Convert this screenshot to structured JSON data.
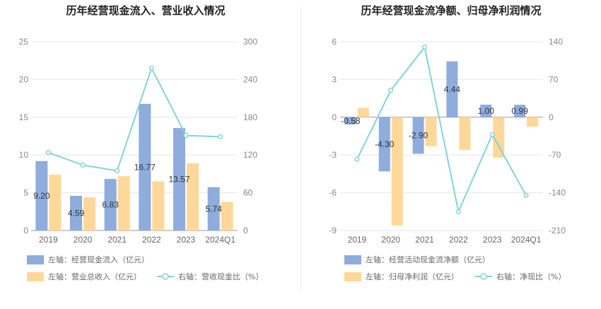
{
  "colors": {
    "bar_primary": "#8eacdc",
    "bar_secondary": "#ffd899",
    "line": "#84d3d8",
    "grid": "#e6e6e6",
    "divider": "#e8e8e8"
  },
  "chart_data": [
    {
      "type": "bar",
      "title": "历年经营现金流入、营业收入情况",
      "categories": [
        "2019",
        "2020",
        "2021",
        "2022",
        "2023",
        "2024Q1"
      ],
      "left_axis": {
        "min": 0,
        "max": 25,
        "ticks": [
          "0",
          "5",
          "10",
          "15",
          "20",
          "25"
        ]
      },
      "right_axis": {
        "min": 0,
        "max": 300,
        "ticks": [
          "0",
          "60",
          "120",
          "180",
          "240",
          "300"
        ]
      },
      "series": [
        {
          "name": "左轴：经营现金流入（亿元）",
          "kind": "bar",
          "axis": "left",
          "values": [
            9.2,
            4.59,
            6.83,
            16.77,
            13.57,
            5.74
          ],
          "labels": [
            "9.20",
            "4.59",
            "6.83",
            "16.77",
            "13.57",
            "5.74"
          ]
        },
        {
          "name": "左轴：营业总收入（亿元）",
          "kind": "bar",
          "axis": "left",
          "values": [
            7.4,
            4.4,
            7.2,
            6.5,
            8.9,
            3.8
          ]
        },
        {
          "name": "右轴：营收现金比（%）",
          "kind": "line",
          "axis": "right",
          "values": [
            124,
            104,
            95,
            258,
            151,
            149
          ]
        }
      ]
    },
    {
      "type": "bar",
      "title": "历年经营现金流净额、归母净利润情况",
      "categories": [
        "2019",
        "2020",
        "2021",
        "2022",
        "2023",
        "2024Q1"
      ],
      "left_axis": {
        "min": -9,
        "max": 6,
        "ticks": [
          "-9",
          "-6",
          "-3",
          "0",
          "3",
          "6"
        ]
      },
      "right_axis": {
        "min": -210,
        "max": 140,
        "ticks": [
          "-210",
          "-140",
          "-70",
          "0",
          "70",
          "140"
        ]
      },
      "series": [
        {
          "name": "左轴：经营活动现金流净额（亿元）",
          "kind": "bar",
          "axis": "left",
          "values": [
            -0.58,
            -4.3,
            -2.9,
            4.44,
            1.0,
            0.99
          ],
          "labels": [
            "-0.58",
            "-4.30",
            "-2.90",
            "4.44",
            "1.00",
            "0.99"
          ]
        },
        {
          "name": "左轴：归母净利润（亿元）",
          "kind": "bar",
          "axis": "left",
          "values": [
            0.75,
            -8.6,
            -2.3,
            -2.6,
            -3.2,
            -0.75
          ]
        },
        {
          "name": "右轴：净现比（%）",
          "kind": "line",
          "axis": "right",
          "values": [
            -78,
            50,
            130,
            -175,
            -32,
            -145
          ]
        }
      ]
    }
  ]
}
